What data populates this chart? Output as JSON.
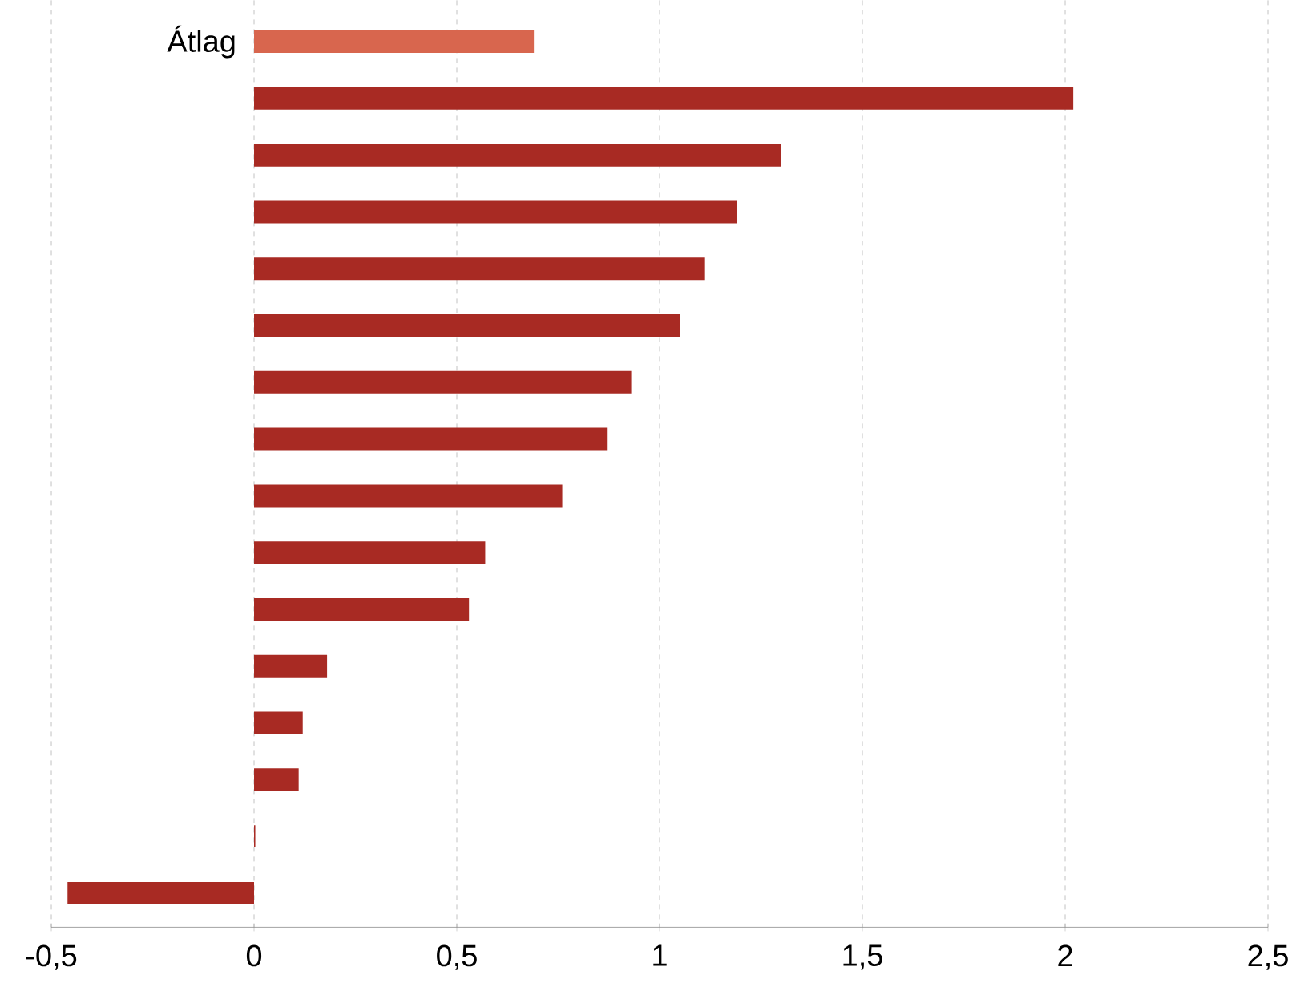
{
  "chart_data": {
    "type": "bar",
    "orientation": "horizontal",
    "categories": [
      "Átlag",
      null,
      null,
      null,
      null,
      null,
      null,
      null,
      null,
      null,
      null,
      null,
      null,
      null,
      null,
      null
    ],
    "values": [
      0.69,
      2.02,
      1.3,
      1.19,
      1.11,
      1.05,
      0.93,
      0.87,
      0.76,
      0.57,
      0.53,
      0.18,
      0.12,
      0.11,
      0.003,
      -0.46
    ],
    "colors": [
      "#d8664e",
      "#a82a23",
      "#a82a23",
      "#a82a23",
      "#a82a23",
      "#a82a23",
      "#a82a23",
      "#a82a23",
      "#a82a23",
      "#a82a23",
      "#a82a23",
      "#a82a23",
      "#a82a23",
      "#a82a23",
      "#a82a23",
      "#a82a23"
    ],
    "xlim": [
      -0.5,
      2.5
    ],
    "xticks": [
      {
        "value": -0.5,
        "label": "-0,5"
      },
      0,
      {
        "value": 0.5,
        "label": "0,5"
      },
      1,
      {
        "value": 1.5,
        "label": "1,5"
      },
      2,
      {
        "value": 2.5,
        "label": "2,5"
      }
    ],
    "grid": "x"
  }
}
